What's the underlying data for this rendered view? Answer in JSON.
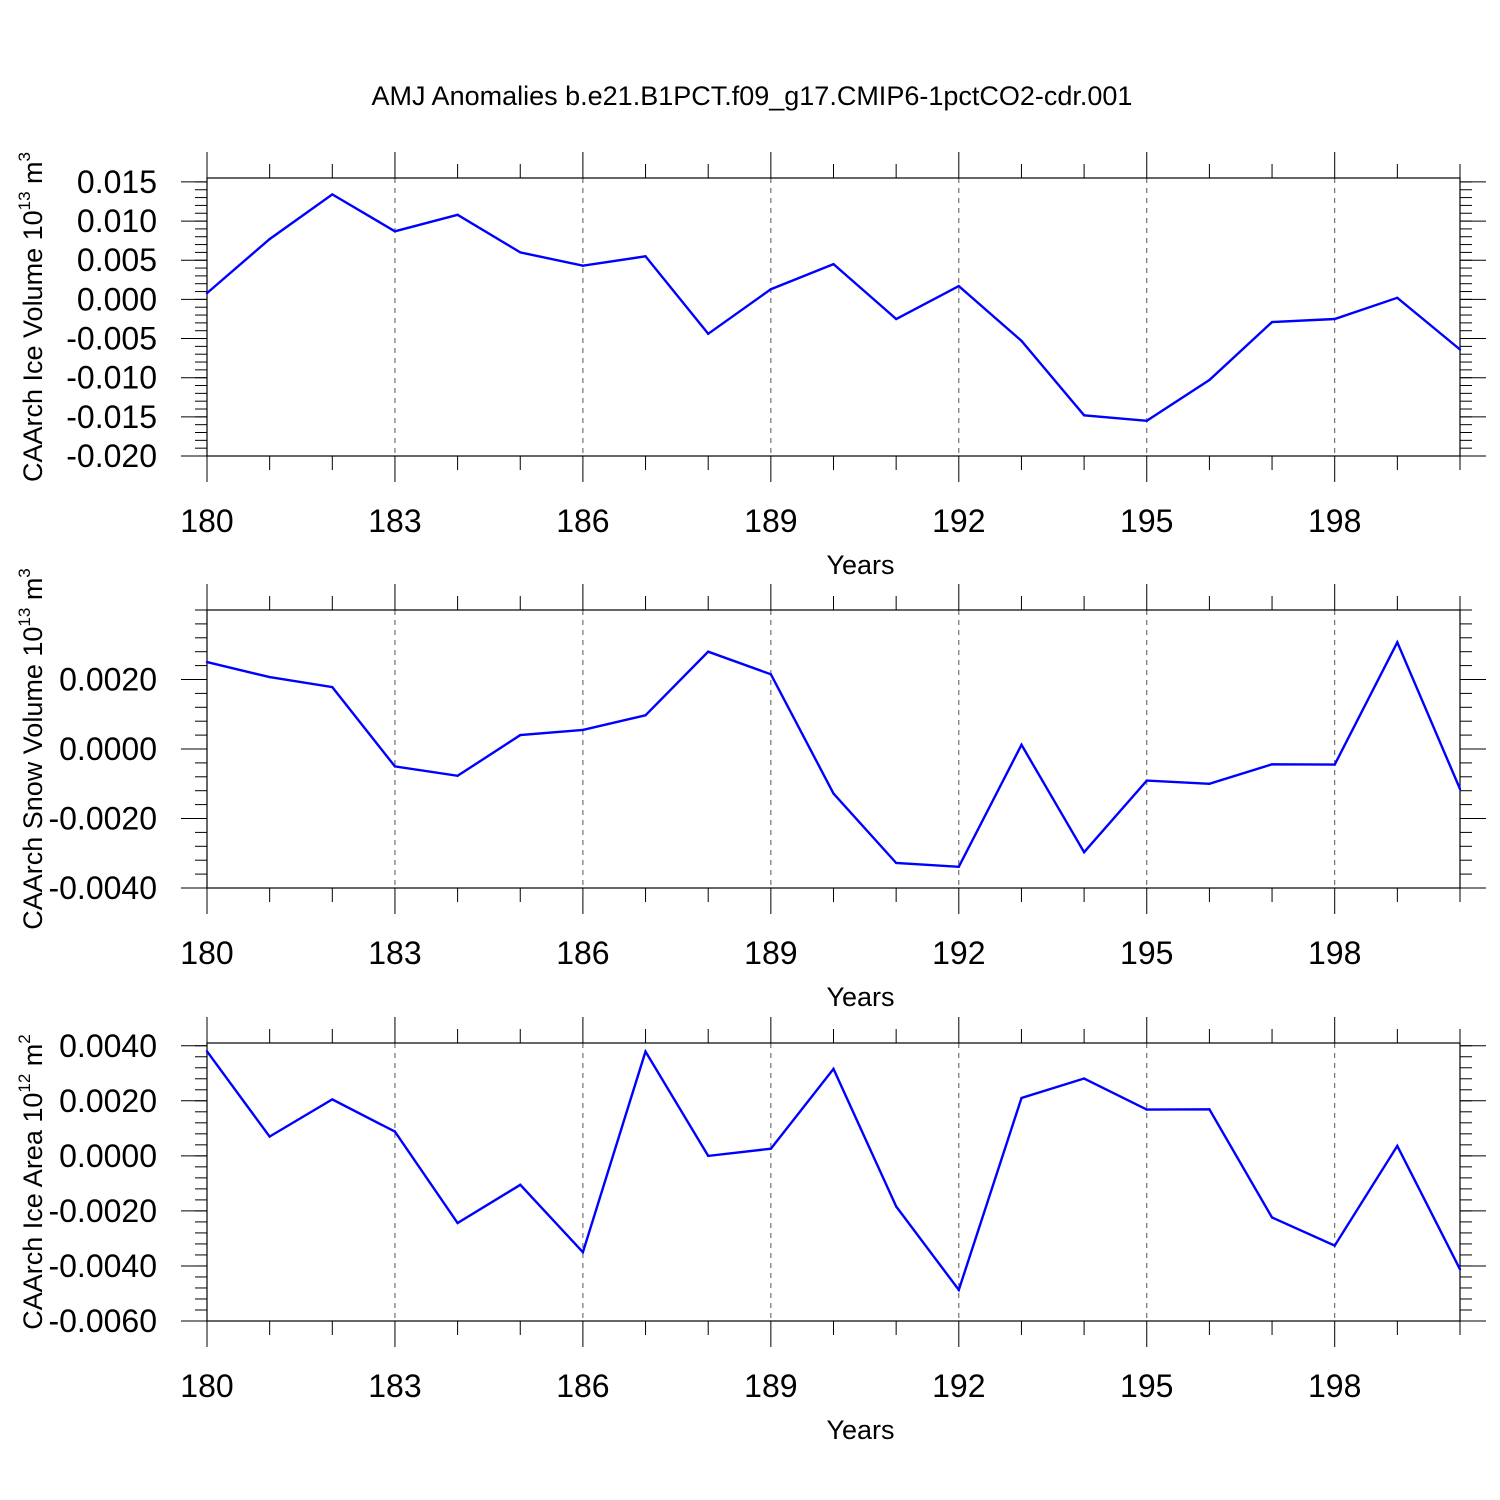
{
  "title": "AMJ Anomalies b.e21.B1PCT.f09_g17.CMIP6-1pctCO2-cdr.001",
  "line_color": "#0000ff",
  "chart_data": [
    {
      "type": "line",
      "ylabel": {
        "main": "CAArch Ice Volume 10",
        "sup": "13",
        "unit": " m",
        "unit_sup": "3"
      },
      "xlabel": "Years",
      "xlim": [
        180,
        200
      ],
      "ylim": [
        -0.02,
        0.0155
      ],
      "xticks": [
        180,
        183,
        186,
        189,
        192,
        195,
        198
      ],
      "xtick_labels": [
        "180",
        "183",
        "186",
        "189",
        "192",
        "195",
        "198"
      ],
      "yticks": [
        -0.02,
        -0.015,
        -0.01,
        -0.005,
        0,
        0.005,
        0.01,
        0.015
      ],
      "ytick_labels": [
        "-0.020",
        "-0.015",
        "-0.010",
        "-0.005",
        "0.000",
        "0.005",
        "0.010",
        "0.015"
      ],
      "yminor_step": 0.001,
      "x": [
        180,
        181,
        182,
        183,
        184,
        185,
        186,
        187,
        188,
        189,
        190,
        191,
        192,
        193,
        194,
        195,
        196,
        197,
        198,
        199,
        200
      ],
      "values": [
        0.0008,
        0.0077,
        0.0134,
        0.0087,
        0.0108,
        0.006,
        0.0043,
        0.0055,
        -0.0044,
        0.0013,
        0.0045,
        -0.0025,
        0.0017,
        -0.0053,
        -0.0148,
        -0.0155,
        -0.0103,
        -0.0029,
        -0.0025,
        0.0002,
        -0.0064
      ]
    },
    {
      "type": "line",
      "ylabel": {
        "main": "CAArch Snow Volume 10",
        "sup": "13",
        "unit": " m",
        "unit_sup": "3"
      },
      "xlabel": "Years",
      "xlim": [
        180,
        200
      ],
      "ylim": [
        -0.004,
        0.004
      ],
      "xticks": [
        180,
        183,
        186,
        189,
        192,
        195,
        198
      ],
      "xtick_labels": [
        "180",
        "183",
        "186",
        "189",
        "192",
        "195",
        "198"
      ],
      "yticks": [
        -0.004,
        -0.002,
        0,
        0.002
      ],
      "ytick_labels": [
        "-0.0040",
        "-0.0020",
        "0.0000",
        "0.0020"
      ],
      "yminor_step": 0.0004,
      "x": [
        180,
        181,
        182,
        183,
        184,
        185,
        186,
        187,
        188,
        189,
        190,
        191,
        192,
        193,
        194,
        195,
        196,
        197,
        198,
        199,
        200
      ],
      "values": [
        0.0025,
        0.00207,
        0.00178,
        -0.0005,
        -0.00077,
        0.0004,
        0.00055,
        0.00097,
        0.0028,
        0.00215,
        -0.00128,
        -0.00328,
        -0.00339,
        0.00012,
        -0.00297,
        -0.00091,
        -0.001,
        -0.00044,
        -0.00045,
        0.00307,
        -0.00115
      ]
    },
    {
      "type": "line",
      "ylabel": {
        "main": "CAArch Ice Area 10",
        "sup": "12",
        "unit": " m",
        "unit_sup": "2"
      },
      "xlabel": "Years",
      "xlim": [
        180,
        200
      ],
      "ylim": [
        -0.006,
        0.0041
      ],
      "xticks": [
        180,
        183,
        186,
        189,
        192,
        195,
        198
      ],
      "xtick_labels": [
        "180",
        "183",
        "186",
        "189",
        "192",
        "195",
        "198"
      ],
      "yticks": [
        -0.006,
        -0.004,
        -0.002,
        0,
        0.002,
        0.004
      ],
      "ytick_labels": [
        "-0.0060",
        "-0.0040",
        "-0.0020",
        "0.0000",
        "0.0020",
        "0.0040"
      ],
      "yminor_step": 0.0004,
      "x": [
        180,
        181,
        182,
        183,
        184,
        185,
        186,
        187,
        188,
        189,
        190,
        191,
        192,
        193,
        194,
        195,
        196,
        197,
        198,
        199,
        200
      ],
      "values": [
        0.0038,
        0.0007,
        0.00205,
        0.00088,
        -0.00244,
        -0.00105,
        -0.0035,
        0.00379,
        0.0,
        0.00026,
        0.00316,
        -0.00184,
        -0.00487,
        0.0021,
        0.00281,
        0.00168,
        0.00169,
        -0.00224,
        -0.00326,
        0.00036,
        -0.00412
      ]
    }
  ]
}
